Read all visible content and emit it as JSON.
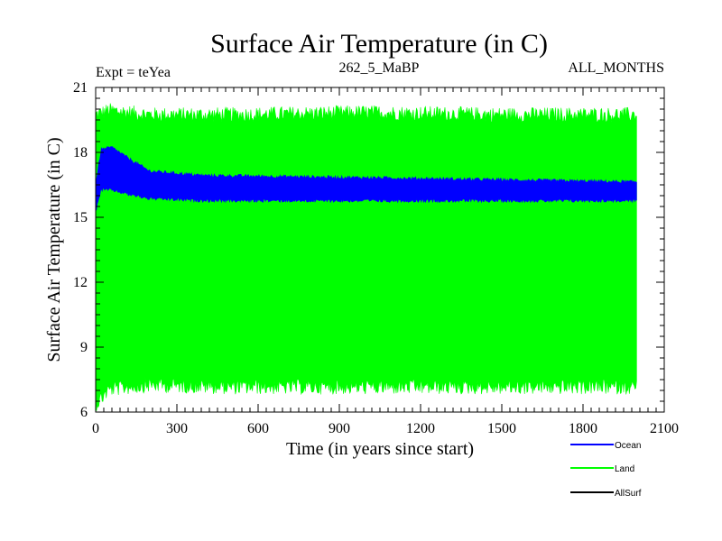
{
  "chart_data": {
    "type": "line",
    "title": "Surface Air Temperature (in C)",
    "subtitle_left": "Expt = teYea",
    "subtitle_center": "262_5_MaBP",
    "subtitle_right": "ALL_MONTHS",
    "xlabel": "Time (in years since start)",
    "ylabel": "Surface Air Temperature (in C)",
    "xlim": [
      0,
      2100
    ],
    "ylim": [
      6,
      21
    ],
    "x_ticks": [
      0,
      300,
      600,
      900,
      1200,
      1500,
      1800,
      2100
    ],
    "x_tick_labels": [
      "0",
      "300",
      "600",
      "900",
      "1200",
      "1500",
      "1800",
      "2100"
    ],
    "y_ticks": [
      6,
      9,
      12,
      15,
      18,
      21
    ],
    "y_tick_labels": [
      "6",
      "9",
      "12",
      "15",
      "18",
      "21"
    ],
    "grid": false,
    "legend_position": "bottom-right",
    "series": [
      {
        "name": "Land",
        "color": "#00ff00",
        "x_range": [
          0,
          2000
        ],
        "envelope_lower": [
          [
            0,
            6.5
          ],
          [
            50,
            7.2
          ],
          [
            200,
            7.4
          ],
          [
            500,
            7.3
          ],
          [
            1000,
            7.3
          ],
          [
            1500,
            7.3
          ],
          [
            2000,
            7.3
          ]
        ],
        "envelope_upper": [
          [
            0,
            19.6
          ],
          [
            50,
            19.8
          ],
          [
            200,
            19.6
          ],
          [
            500,
            19.6
          ],
          [
            1000,
            19.7
          ],
          [
            1500,
            19.6
          ],
          [
            2000,
            19.6
          ]
        ],
        "noise_amplitude": 0.35
      },
      {
        "name": "Ocean",
        "color": "#0000ff",
        "x_range": [
          0,
          2000
        ],
        "envelope_lower": [
          [
            0,
            15.3
          ],
          [
            20,
            16.3
          ],
          [
            60,
            16.3
          ],
          [
            120,
            16.1
          ],
          [
            200,
            15.9
          ],
          [
            400,
            15.8
          ],
          [
            1000,
            15.8
          ],
          [
            2000,
            15.8
          ]
        ],
        "envelope_upper": [
          [
            0,
            16.5
          ],
          [
            20,
            18.1
          ],
          [
            60,
            18.2
          ],
          [
            120,
            17.7
          ],
          [
            200,
            17.1
          ],
          [
            400,
            16.9
          ],
          [
            1000,
            16.8
          ],
          [
            2000,
            16.6
          ]
        ],
        "noise_amplitude": 0.08
      },
      {
        "name": "AllSurf",
        "color": "#000000",
        "x_range": [
          0,
          2000
        ],
        "envelope_lower": [],
        "envelope_upper": [],
        "noise_amplitude": 0
      }
    ]
  }
}
